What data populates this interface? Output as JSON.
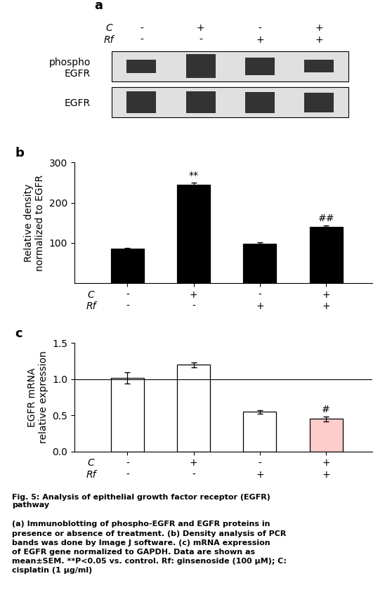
{
  "chart_data": [
    {
      "type": "blot",
      "title": "a",
      "categories": [
        "-\n-",
        "+\n-",
        "-\n+",
        "+\n+"
      ],
      "category_rows": [
        "C",
        "Rf"
      ],
      "series": [
        {
          "name": "phospho\nEGFR",
          "values": [
            0.45,
            0.8,
            0.58,
            0.42
          ]
        },
        {
          "name": "EGFR",
          "values": [
            0.72,
            0.72,
            0.7,
            0.65
          ]
        }
      ]
    },
    {
      "type": "bar",
      "title": "b",
      "categories": [
        "-\n-",
        "+\n-",
        "-\n+",
        "+\n+"
      ],
      "category_rows": [
        "C",
        "Rf"
      ],
      "values": [
        85,
        245,
        98,
        140
      ],
      "errors": [
        3,
        5,
        4,
        4
      ],
      "ylim": [
        0,
        300
      ],
      "yticks": [
        100,
        200,
        300
      ],
      "ylabel": "Relative density\nnormalized to EGFR",
      "color": "#000000",
      "annotations": [
        null,
        "**",
        null,
        "##"
      ]
    },
    {
      "type": "bar",
      "title": "c",
      "categories": [
        "-\n-",
        "+\n-",
        "-\n+",
        "+\n+"
      ],
      "category_rows": [
        "C",
        "Rf"
      ],
      "values": [
        1.02,
        1.2,
        0.55,
        0.45
      ],
      "errors": [
        0.08,
        0.035,
        0.025,
        0.035
      ],
      "ylim": [
        0.0,
        1.5
      ],
      "yticks": [
        {
          "value": 0.0,
          "label": "0.0"
        },
        {
          "value": 0.5,
          "label": "0.5"
        },
        {
          "value": 1.0,
          "label": "1.0"
        },
        {
          "value": 1.5,
          "label": "1.5"
        }
      ],
      "ylabel": "EGFR mRNA\nrelative expression",
      "colors": [
        "#ffffff",
        "#ffffff",
        "#ffffff",
        "#ffcccc"
      ],
      "hline": 1.0,
      "annotations": [
        null,
        null,
        null,
        "#"
      ]
    }
  ],
  "caption": {
    "title": "Fig. 5: Analysis of epithelial growth factor receptor (EGFR)\npathway",
    "text": "(a) Immunoblotting of phospho-EGFR and EGFR proteins in\npresence or absence of treatment. (b) Density analysis of PCR\nbands was done by Image J software. (c) mRNA expression\nof EGFR gene normalized to GAPDH. Data are shown as\nmean±SEM. **P<0.05 vs. control. Rf: ginsenoside (100 μM); C:\ncisplatin (1 μg/ml)"
  }
}
